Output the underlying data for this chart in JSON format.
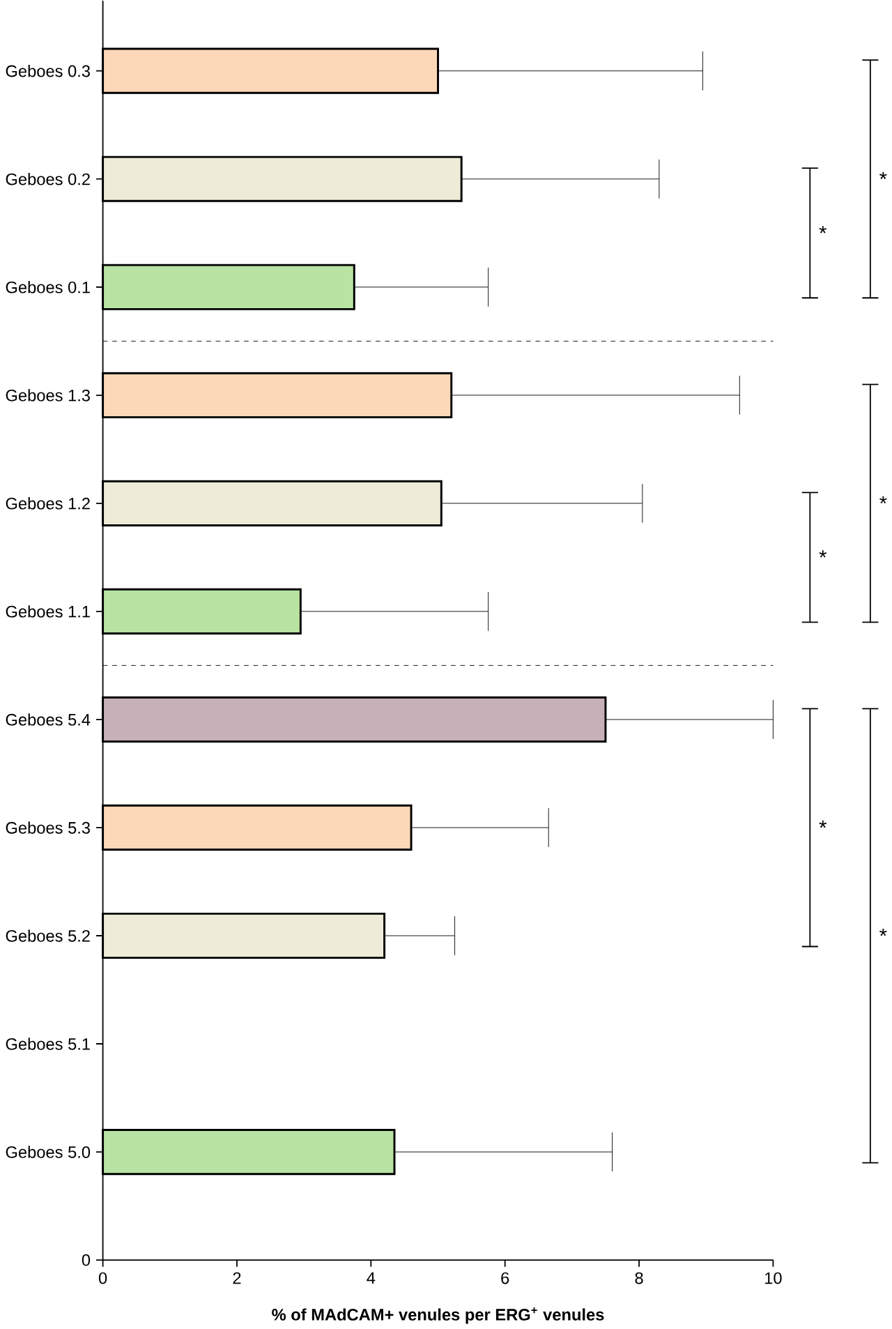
{
  "chart_data": {
    "type": "bar",
    "orientation": "horizontal",
    "xlabel": "% of MAdCAM+ venules per ERG$^{+}$ venules",
    "categories": [
      "Geboes 0.3",
      "Geboes 0.2",
      "Geboes 0.1",
      "Geboes 1.3",
      "Geboes 1.2",
      "Geboes 1.1",
      "Geboes 5.4",
      "Geboes 5.3",
      "Geboes 5.2",
      "Geboes 5.1",
      "Geboes 5.0",
      "0"
    ],
    "values": [
      5.0,
      5.35,
      3.75,
      5.2,
      5.05,
      2.95,
      7.5,
      4.6,
      4.2,
      null,
      4.35,
      null
    ],
    "errors": [
      [
        5.0,
        8.95
      ],
      [
        5.35,
        8.3
      ],
      [
        3.75,
        5.75
      ],
      [
        5.2,
        9.5
      ],
      [
        5.05,
        8.05
      ],
      [
        2.95,
        5.75
      ],
      [
        7.5,
        10.0
      ],
      [
        4.6,
        6.65
      ],
      [
        4.2,
        5.25
      ],
      null,
      [
        4.35,
        7.6
      ],
      null
    ],
    "colors": [
      "#fcd8b8",
      "#eeecd8",
      "#b9e3a3",
      "#fcd8b8",
      "#eeecd8",
      "#b9e3a3",
      "#c8b0b8",
      "#fcd8b8",
      "#eeecd8",
      "#eeecd8",
      "#b9e3a3",
      "#eeecd8"
    ],
    "xlim": [
      0,
      10
    ],
    "xticks": [
      0,
      2,
      4,
      6,
      8,
      10
    ],
    "annotations": [
      "*",
      "*",
      "*",
      "*",
      "*",
      "*"
    ]
  }
}
